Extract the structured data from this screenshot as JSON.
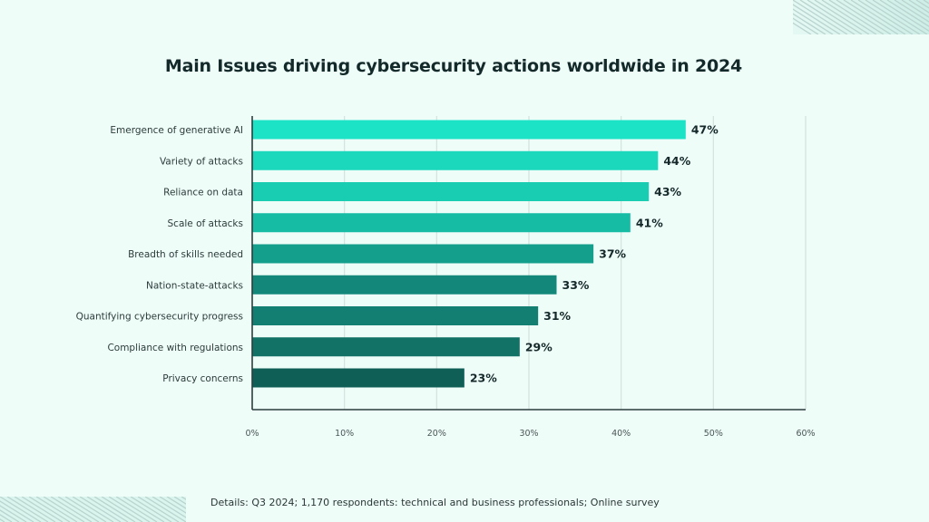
{
  "footer": {
    "details": "Details: Q3 2024; 1,170 respondents: technical and business professionals; Online survey"
  },
  "decorations": {
    "top_right": "diagonal-stripes-pattern",
    "bottom_left": "diagonal-stripes-pattern"
  },
  "chart_data": {
    "type": "bar",
    "orientation": "horizontal",
    "title": "Main Issues driving cybersecurity actions worldwide in 2024",
    "xlabel": "",
    "ylabel": "",
    "categories": [
      "Emergence of generative AI",
      "Variety of attacks",
      "Reliance on data",
      "Scale of attacks",
      "Breadth of skills needed",
      "Nation-state-attacks",
      "Quantifying cybersecurity progress",
      "Compliance with regulations",
      "Privacy concerns"
    ],
    "values": [
      47,
      44,
      43,
      41,
      37,
      33,
      31,
      29,
      23
    ],
    "value_labels": [
      "47%",
      "44%",
      "43%",
      "41%",
      "37%",
      "33%",
      "31%",
      "29%",
      "23%"
    ],
    "bar_colors": [
      "#1de3c6",
      "#1bd8bd",
      "#19cdb3",
      "#17bca5",
      "#149e8c",
      "#13887a",
      "#127f72",
      "#117265",
      "#0f5f57"
    ],
    "xlim": [
      0,
      60
    ],
    "xticks": [
      0,
      10,
      20,
      30,
      40,
      50,
      60
    ],
    "xtick_labels": [
      "0%",
      "10%",
      "20%",
      "30%",
      "40%",
      "50%",
      "60%"
    ],
    "grid": "vertical",
    "legend": "none",
    "unit": "%"
  }
}
